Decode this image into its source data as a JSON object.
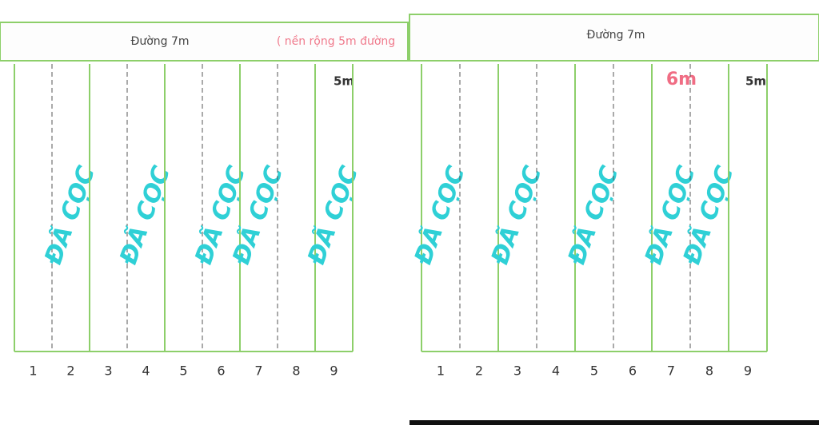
{
  "left": {
    "title": "Đường 7m",
    "note": "( nền rộng 5m đường",
    "width_label": "5m",
    "lots": [
      {
        "number": "1"
      },
      {
        "number": "2",
        "status": "ĐÃ CỌC"
      },
      {
        "number": "3"
      },
      {
        "number": "4",
        "status": "ĐÃ CỌC"
      },
      {
        "number": "5"
      },
      {
        "number": "6",
        "status": "ĐÃ CỌC"
      },
      {
        "number": "7",
        "status": "ĐÃ CỌC"
      },
      {
        "number": "8"
      },
      {
        "number": "9",
        "status": "ĐÃ CỌC"
      }
    ]
  },
  "right": {
    "title": "Đường 7m",
    "width_label": "5m",
    "front_label": "6m",
    "lots": [
      {
        "number": "1",
        "status": "ĐÃ CỌC"
      },
      {
        "number": "2"
      },
      {
        "number": "3",
        "status": "ĐÃ CỌC"
      },
      {
        "number": "4"
      },
      {
        "number": "5",
        "status": "ĐÃ CỌC"
      },
      {
        "number": "6"
      },
      {
        "number": "7",
        "status": "ĐÃ CỌC"
      },
      {
        "number": "8",
        "status": "ĐÃ CỌC"
      },
      {
        "number": "9"
      }
    ]
  }
}
